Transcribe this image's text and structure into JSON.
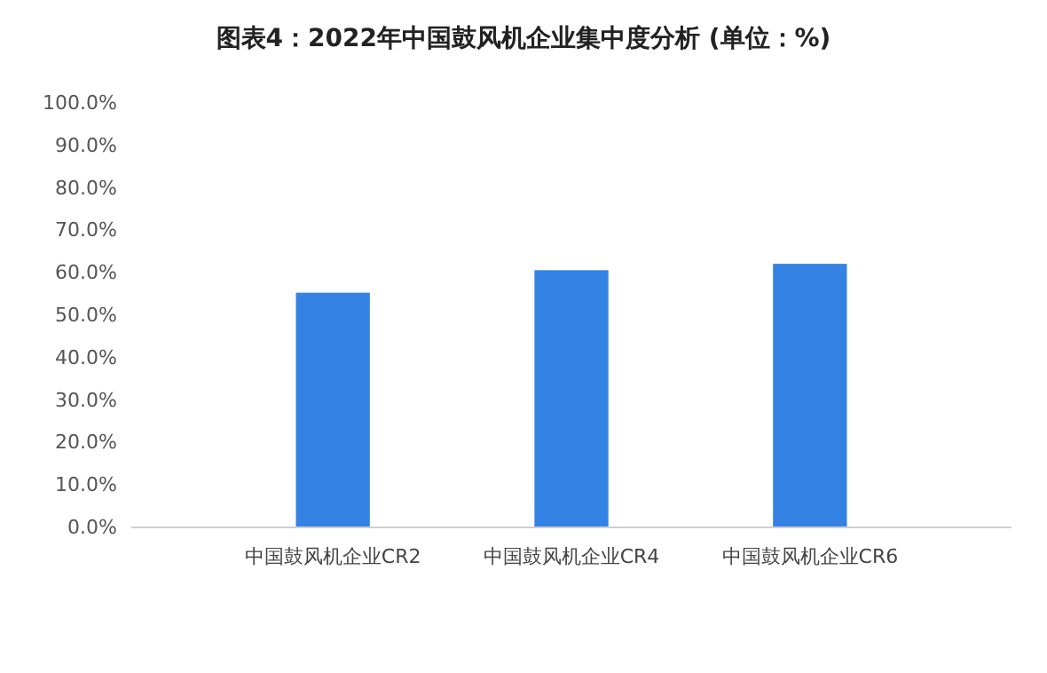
{
  "chart_data": {
    "type": "bar",
    "title": "图表4：2022年中国鼓风机企业集中度分析 (单位：%)",
    "categories": [
      "中国鼓风机企业CR2",
      "中国鼓风机企业CR4",
      "中国鼓风机企业CR6"
    ],
    "values": [
      55.3,
      60.6,
      62.1
    ],
    "color": "#3582e5",
    "ylim": [
      0,
      100
    ],
    "yticks": [
      {
        "value": 0,
        "label": "0.0%"
      },
      {
        "value": 10,
        "label": "10.0%"
      },
      {
        "value": 20,
        "label": "20.0%"
      },
      {
        "value": 30,
        "label": "30.0%"
      },
      {
        "value": 40,
        "label": "40.0%"
      },
      {
        "value": 50,
        "label": "50.0%"
      },
      {
        "value": 60,
        "label": "60.0%"
      },
      {
        "value": 70,
        "label": "70.0%"
      },
      {
        "value": 80,
        "label": "80.0%"
      },
      {
        "value": 90,
        "label": "90.0%"
      },
      {
        "value": 100,
        "label": "100.0%"
      }
    ],
    "grid": false
  }
}
